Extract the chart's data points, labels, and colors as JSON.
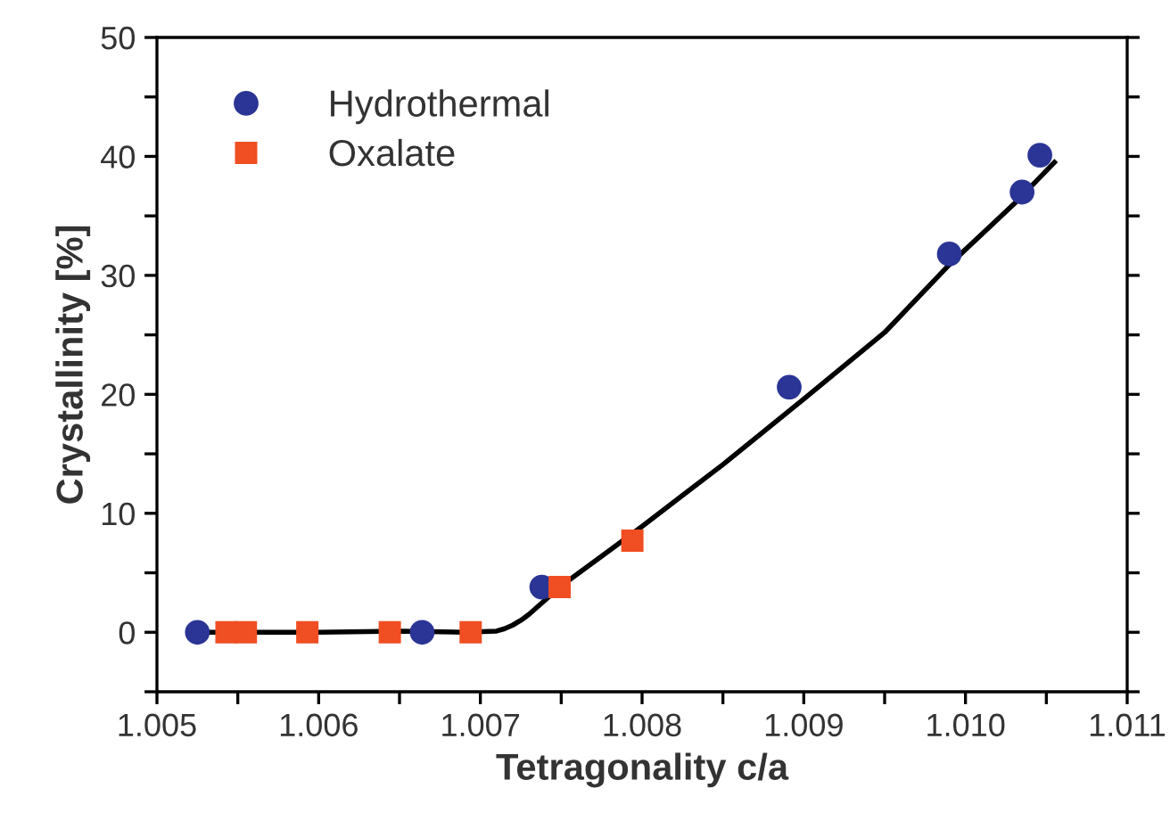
{
  "chart_data": {
    "type": "scatter",
    "xlabel": "Tetragonality c/a",
    "ylabel": "Crystallinity [%]",
    "xlim": [
      1.005,
      1.011
    ],
    "ylim": [
      -5,
      50
    ],
    "xticks": [
      {
        "value": 1.005,
        "label": "1.005"
      },
      {
        "value": 1.0055,
        "label": null
      },
      {
        "value": 1.006,
        "label": "1.006"
      },
      {
        "value": 1.0065,
        "label": null
      },
      {
        "value": 1.007,
        "label": "1.007"
      },
      {
        "value": 1.0075,
        "label": null
      },
      {
        "value": 1.008,
        "label": "1.008"
      },
      {
        "value": 1.0085,
        "label": null
      },
      {
        "value": 1.009,
        "label": "1.009"
      },
      {
        "value": 1.0095,
        "label": null
      },
      {
        "value": 1.01,
        "label": "1.010"
      },
      {
        "value": 1.0105,
        "label": null
      },
      {
        "value": 1.011,
        "label": "1.011"
      }
    ],
    "yticks": [
      {
        "value": -5,
        "label": null
      },
      0,
      {
        "value": 5,
        "label": null
      },
      10,
      {
        "value": 15,
        "label": null
      },
      20,
      {
        "value": 25,
        "label": null
      },
      30,
      {
        "value": 35,
        "label": null
      },
      40,
      {
        "value": 45,
        "label": null
      },
      50
    ],
    "grid": false,
    "legend": "top left",
    "series": [
      {
        "name": "Hydrothermal",
        "marker": "circle",
        "color": "#2b3595",
        "x": [
          1.00525,
          1.00664,
          1.00738,
          1.00891,
          1.0099,
          1.01035,
          1.01046
        ],
        "values": [
          0,
          0,
          3.8,
          20.6,
          31.8,
          37.0,
          40.1
        ]
      },
      {
        "name": "Oxalate",
        "marker": "square",
        "color": "#f04e23",
        "x": [
          1.00543,
          1.00555,
          1.00593,
          1.00644,
          1.00694,
          1.00749,
          1.00794
        ],
        "values": [
          0,
          0,
          0,
          0,
          0,
          3.8,
          7.7
        ]
      },
      {
        "type": "line",
        "marker": "none",
        "line_style": "solid",
        "color": "#000000",
        "x": [
          1.00525,
          1.006,
          1.0065,
          1.0069,
          1.0071,
          1.00715,
          1.0072,
          1.00725,
          1.0073,
          1.0074,
          1.0075,
          1.0078,
          1.008,
          1.0085,
          1.009,
          1.0095,
          1.0099,
          1.0103,
          1.01055
        ],
        "values": [
          0,
          0,
          0.1,
          0,
          0.1,
          0.3,
          0.6,
          1.0,
          1.5,
          2.7,
          3.9,
          6.9,
          8.9,
          14.1,
          19.6,
          25.2,
          30.9,
          36.0,
          39.5
        ]
      }
    ]
  }
}
